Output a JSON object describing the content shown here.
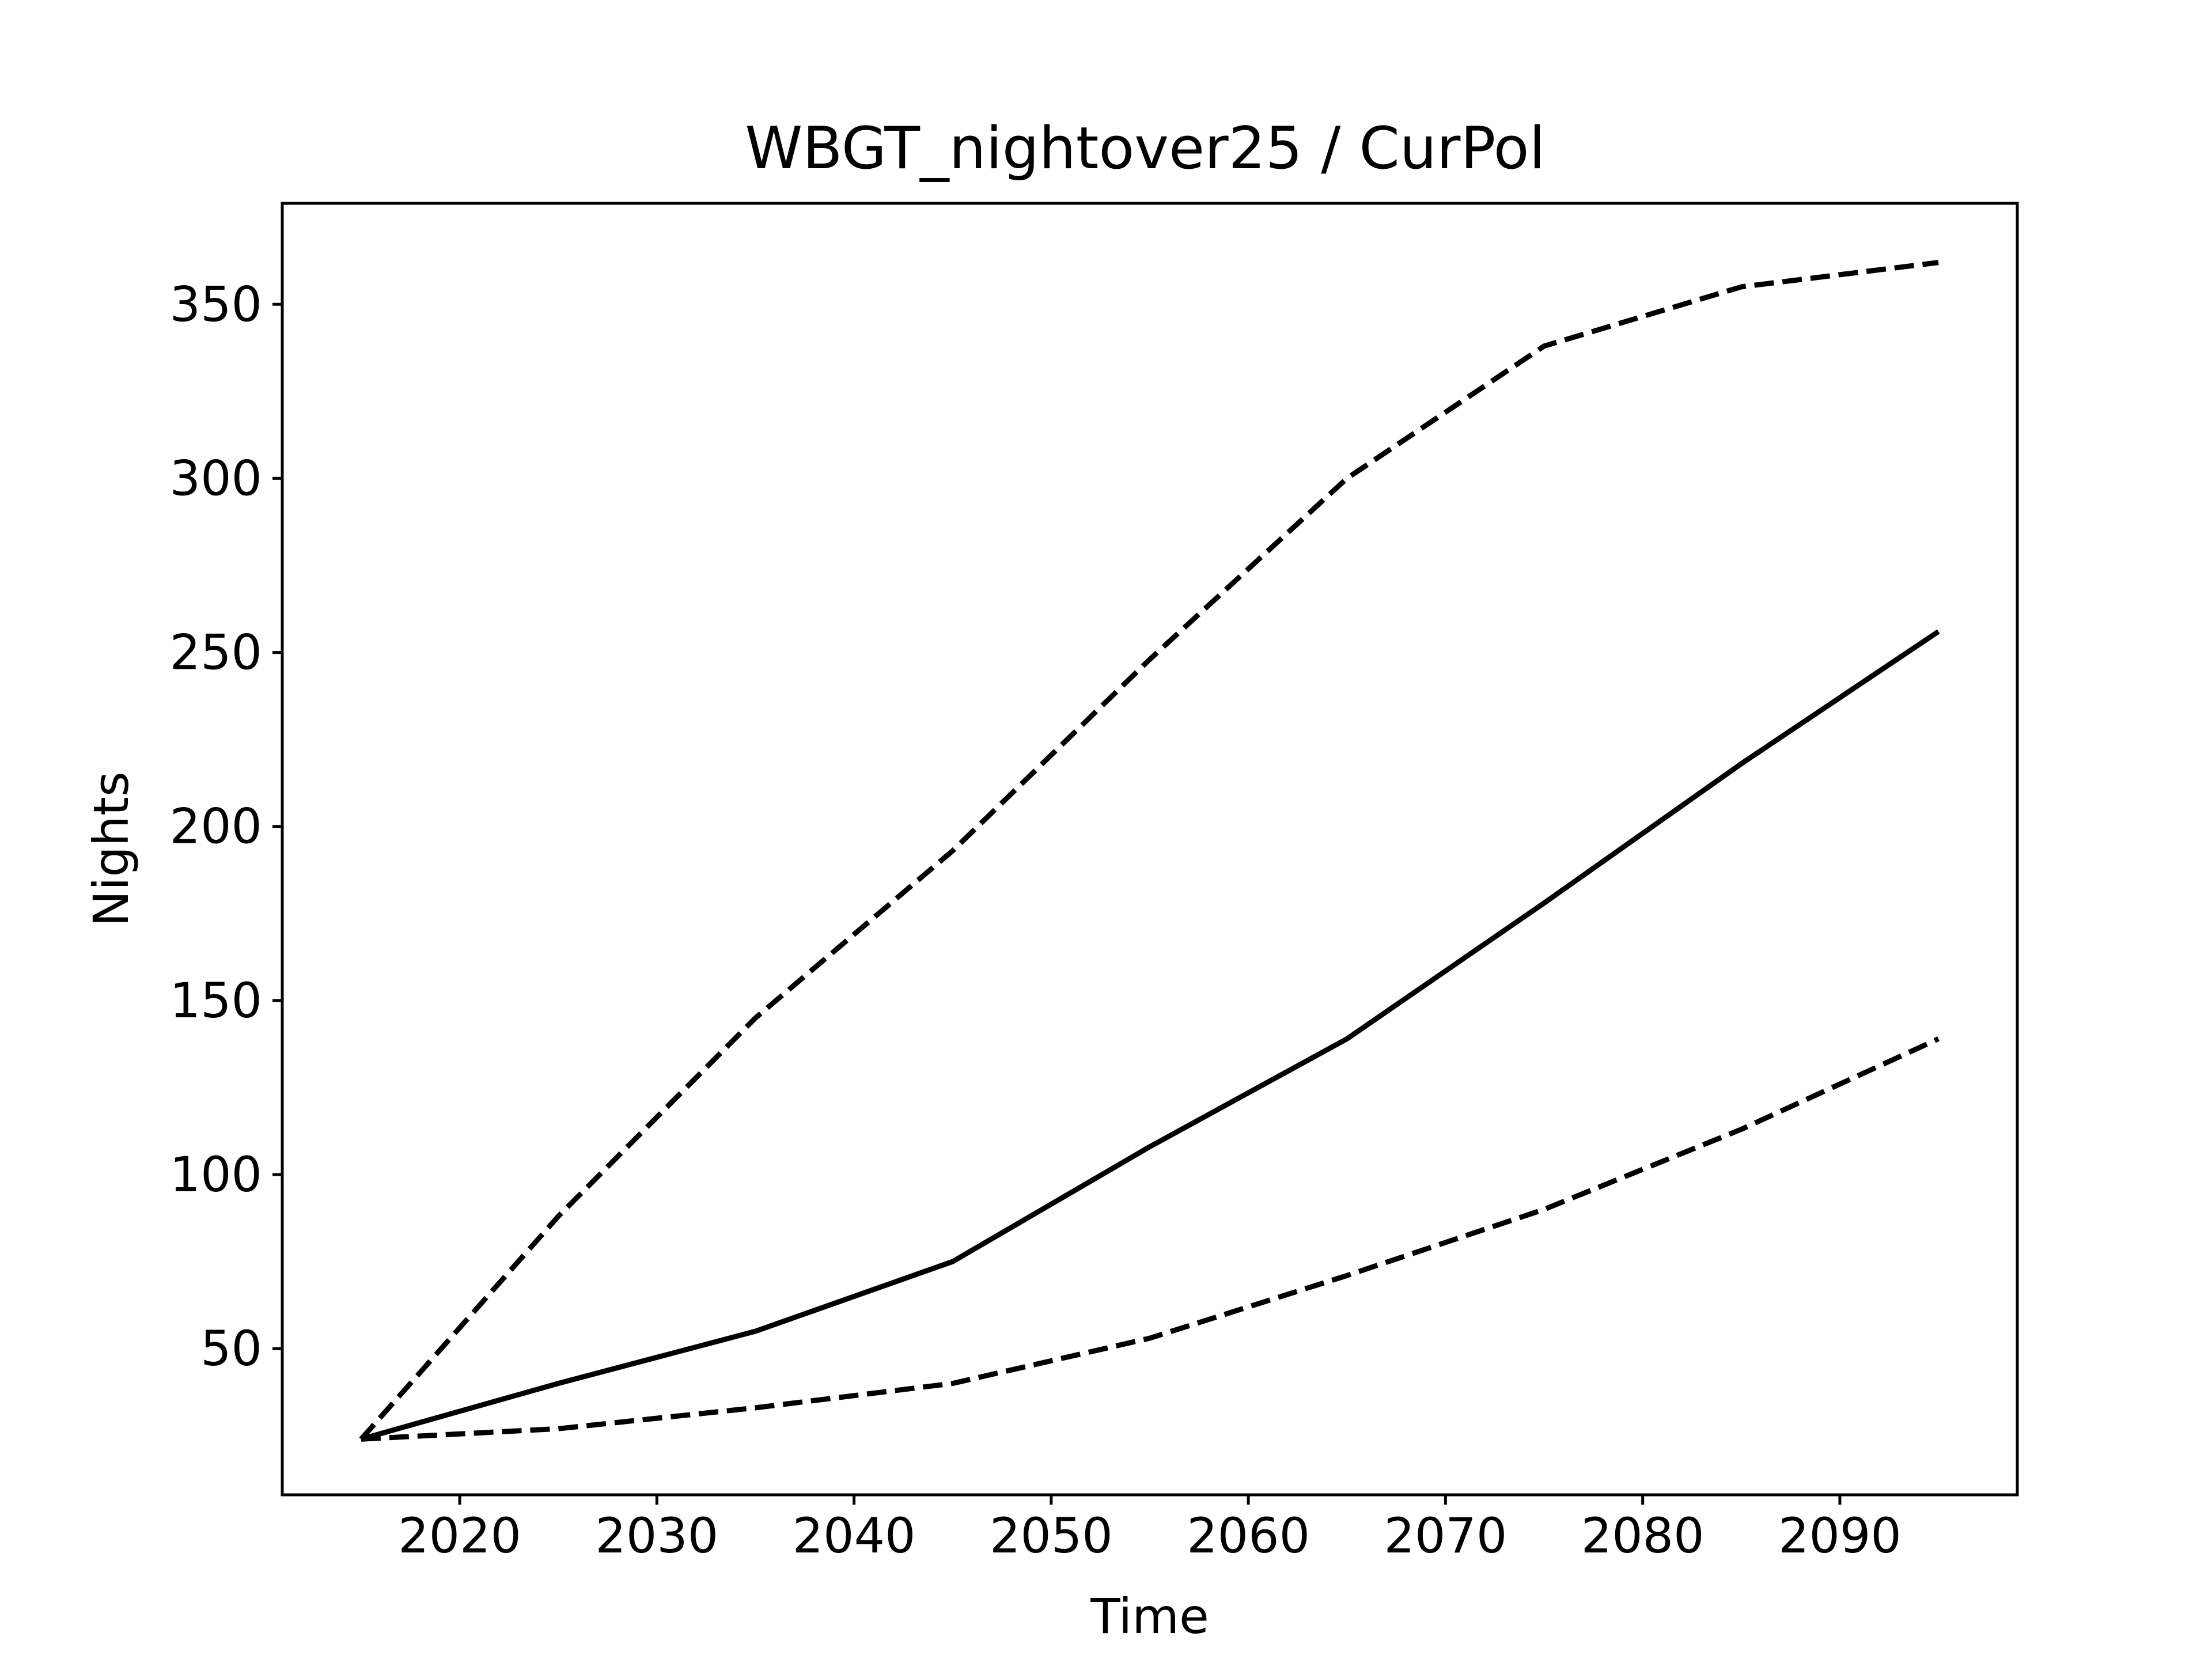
{
  "chart_data": {
    "type": "line",
    "title": "WBGT_nightover25 / CurPol",
    "xlabel": "Time",
    "ylabel": "Nights",
    "xlim": [
      2011,
      2099
    ],
    "ylim": [
      8,
      379
    ],
    "xticks": [
      2020,
      2030,
      2040,
      2050,
      2060,
      2070,
      2080,
      2090
    ],
    "yticks": [
      50,
      100,
      150,
      200,
      250,
      300,
      350
    ],
    "grid": false,
    "legend": false,
    "x": [
      2015,
      2025,
      2035,
      2045,
      2055,
      2065,
      2075,
      2085,
      2095
    ],
    "series": [
      {
        "style": "dashed",
        "color": "#000000",
        "values": [
          24,
          88,
          145,
          193,
          248,
          300,
          338,
          355,
          362
        ]
      },
      {
        "style": "solid",
        "color": "#000000",
        "values": [
          24,
          40,
          55,
          75,
          108,
          139,
          178,
          218,
          256
        ]
      },
      {
        "style": "dashed",
        "color": "#000000",
        "values": [
          24,
          27,
          33,
          40,
          53,
          71,
          90,
          113,
          139
        ]
      }
    ]
  }
}
